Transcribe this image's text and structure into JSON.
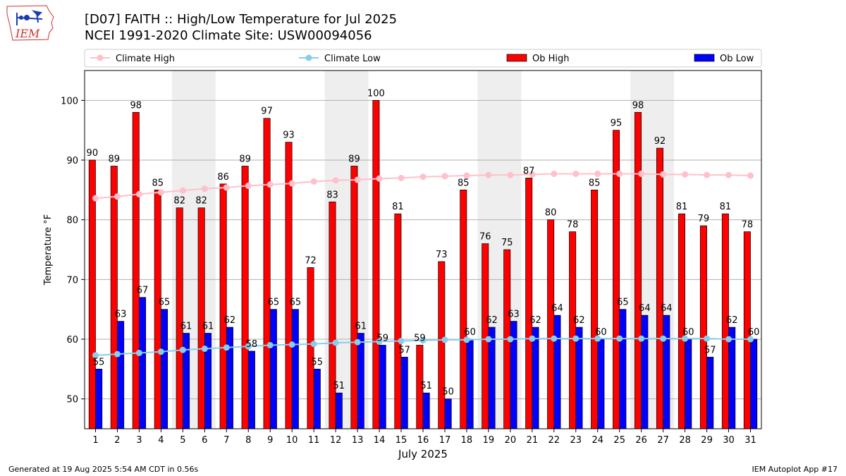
{
  "logo": {
    "text": "IEM"
  },
  "title": "[D07] FAITH :: High/Low Temperature for Jul 2025",
  "subtitle": "NCEI 1991-2020 Climate Site: USW00094056",
  "footer": {
    "left": "Generated at 19 Aug 2025 5:54 AM CDT in 0.56s",
    "right": "IEM Autoplot App #17"
  },
  "colors": {
    "ob_high": "#ff0000",
    "ob_low": "#0000ff",
    "climate_high": "#ffc0cb",
    "climate_low": "#87ceeb",
    "weekend_shade": "#eeeeee",
    "grid": "#b0b0b0"
  },
  "chart_data": {
    "type": "bar",
    "title": "[D07] FAITH :: High/Low Temperature for Jul 2025",
    "xlabel": "July 2025",
    "ylabel": "Temperature °F",
    "ylim": [
      45,
      105
    ],
    "yticks": [
      50,
      60,
      70,
      80,
      90,
      100
    ],
    "grid": "horizontal",
    "legend": "top",
    "x": [
      1,
      2,
      3,
      4,
      5,
      6,
      7,
      8,
      9,
      10,
      11,
      12,
      13,
      14,
      15,
      16,
      17,
      18,
      19,
      20,
      21,
      22,
      23,
      24,
      25,
      26,
      27,
      28,
      29,
      30,
      31
    ],
    "shaded_days": [
      5,
      6,
      12,
      13,
      19,
      20,
      26,
      27
    ],
    "series": [
      {
        "name": "Ob High",
        "type": "bar",
        "values": [
          90,
          89,
          98,
          85,
          82,
          82,
          86,
          89,
          97,
          93,
          72,
          83,
          89,
          100,
          81,
          59,
          73,
          85,
          76,
          75,
          87,
          80,
          78,
          85,
          95,
          98,
          92,
          81,
          79,
          81,
          78
        ]
      },
      {
        "name": "Ob Low",
        "type": "bar",
        "values": [
          55,
          63,
          67,
          65,
          61,
          61,
          62,
          58,
          65,
          65,
          55,
          51,
          61,
          59,
          57,
          51,
          50,
          60,
          62,
          63,
          62,
          64,
          62,
          60,
          65,
          64,
          64,
          60,
          57,
          62,
          60
        ]
      },
      {
        "name": "Climate High",
        "type": "line",
        "values": [
          83.6,
          83.9,
          84.3,
          84.6,
          84.9,
          85.2,
          85.4,
          85.7,
          85.9,
          86.1,
          86.4,
          86.6,
          86.7,
          86.9,
          87.0,
          87.2,
          87.3,
          87.4,
          87.5,
          87.5,
          87.6,
          87.7,
          87.7,
          87.7,
          87.7,
          87.7,
          87.6,
          87.6,
          87.5,
          87.5,
          87.4
        ]
      },
      {
        "name": "Climate Low",
        "type": "line",
        "values": [
          57.3,
          57.5,
          57.7,
          57.9,
          58.2,
          58.4,
          58.6,
          58.8,
          59.0,
          59.1,
          59.2,
          59.4,
          59.5,
          59.6,
          59.7,
          59.8,
          59.9,
          59.9,
          60.0,
          60.0,
          60.1,
          60.1,
          60.1,
          60.1,
          60.1,
          60.1,
          60.1,
          60.1,
          60.1,
          60.0,
          60.0
        ]
      }
    ]
  }
}
